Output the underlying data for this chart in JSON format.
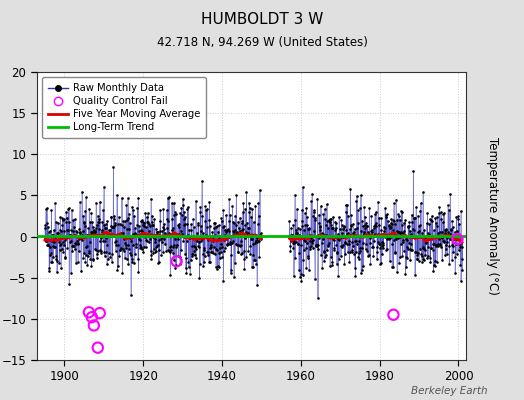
{
  "title": "HUMBOLDT 3 W",
  "subtitle": "42.718 N, 94.269 W (United States)",
  "ylabel": "Temperature Anomaly (°C)",
  "watermark": "Berkeley Earth",
  "xlim": [
    1893,
    2002
  ],
  "ylim": [
    -15,
    20
  ],
  "yticks": [
    -15,
    -10,
    -5,
    0,
    5,
    10,
    15,
    20
  ],
  "xticks": [
    1900,
    1920,
    1940,
    1960,
    1980,
    2000
  ],
  "bg_color": "#e0e0e0",
  "plot_bg_color": "#ffffff",
  "raw_line_color": "#3333bb",
  "raw_marker_color": "#000000",
  "ma_color": "#dd0000",
  "trend_color": "#00bb00",
  "qc_color": "#ff00ff",
  "segment1_start": 1895,
  "segment1_end": 1950,
  "segment2_start": 1957,
  "segment2_end": 2001,
  "seed": 42,
  "noise_std": 2.2,
  "qc_times_1": [
    1906.25,
    1907.0,
    1907.5,
    1908.5,
    1909.0,
    1928.5
  ],
  "qc_vals_1": [
    -9.2,
    -9.8,
    -10.8,
    -13.5,
    -9.3,
    -3.0
  ],
  "qc_times_2": [
    1983.5,
    1999.75
  ],
  "qc_vals_2": [
    -9.5,
    -0.3
  ],
  "legend_labels": [
    "Raw Monthly Data",
    "Quality Control Fail",
    "Five Year Moving Average",
    "Long-Term Trend"
  ]
}
